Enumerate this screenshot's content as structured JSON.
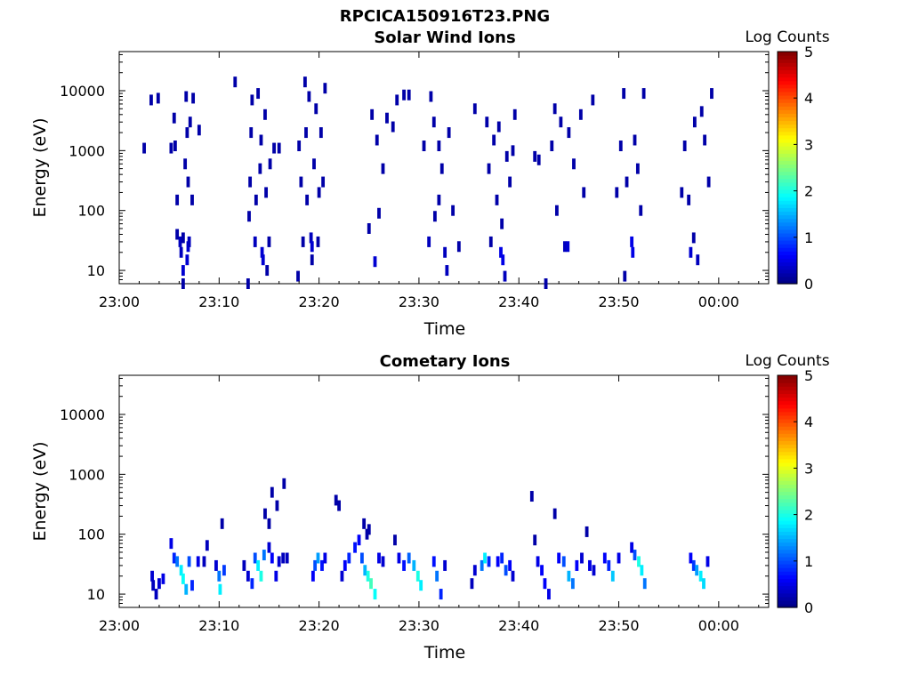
{
  "figure": {
    "title": "RPCICA150916T23.PNG"
  },
  "chart_data": [
    {
      "type": "heatmap",
      "title": "Solar Wind Ions",
      "xlabel": "Time",
      "ylabel": "Energy (eV)",
      "yscale": "log",
      "xlim": [
        "23:00",
        "00:05"
      ],
      "ylim": [
        6,
        45000
      ],
      "x_tick_labels": [
        "23:00",
        "23:10",
        "23:20",
        "23:30",
        "23:40",
        "23:50",
        "00:00"
      ],
      "y_tick_labels": [
        "10",
        "100",
        "1000",
        "10000"
      ],
      "colorbar": {
        "label": "Log Counts",
        "range": [
          0,
          5
        ],
        "tick_labels": [
          "0",
          "1",
          "2",
          "3",
          "4",
          "5"
        ],
        "colormap": "jet"
      },
      "cells": [
        [
          2.5,
          1100,
          0.2
        ],
        [
          3.2,
          7000,
          0.2
        ],
        [
          3.9,
          7500,
          0.2
        ],
        [
          5.2,
          1100,
          0.2
        ],
        [
          5.5,
          3500,
          0.2
        ],
        [
          5.6,
          1200,
          0.2
        ],
        [
          5.8,
          150,
          0.2
        ],
        [
          5.8,
          40,
          0.2
        ],
        [
          6.1,
          30,
          0.3
        ],
        [
          6.2,
          20,
          0.3
        ],
        [
          6.4,
          10,
          0.4
        ],
        [
          6.4,
          35,
          0.2
        ],
        [
          6.6,
          600,
          0.2
        ],
        [
          6.7,
          8000,
          0.2
        ],
        [
          6.8,
          2000,
          0.2
        ],
        [
          6.9,
          300,
          0.2
        ],
        [
          6.8,
          15,
          0.4
        ],
        [
          6.9,
          25,
          0.4
        ],
        [
          6.4,
          6,
          0.2
        ],
        [
          7.1,
          3000,
          0.2
        ],
        [
          7.3,
          150,
          0.2
        ],
        [
          7.4,
          7500,
          0.2
        ],
        [
          8.0,
          2200,
          0.2
        ],
        [
          7.0,
          30,
          0.3
        ],
        [
          11.6,
          14000,
          0.2
        ],
        [
          13.1,
          300,
          0.2
        ],
        [
          13.0,
          80,
          0.2
        ],
        [
          13.2,
          2000,
          0.2
        ],
        [
          13.3,
          7000,
          0.2
        ],
        [
          13.6,
          30,
          0.3
        ],
        [
          13.7,
          150,
          0.2
        ],
        [
          13.9,
          9000,
          0.2
        ],
        [
          14.1,
          500,
          0.2
        ],
        [
          14.2,
          1500,
          0.2
        ],
        [
          14.3,
          20,
          0.4
        ],
        [
          14.4,
          15,
          0.4
        ],
        [
          14.6,
          4000,
          0.2
        ],
        [
          14.7,
          200,
          0.2
        ],
        [
          14.8,
          10,
          0.2
        ],
        [
          12.9,
          6,
          0.2
        ],
        [
          15.0,
          30,
          0.2
        ],
        [
          15.1,
          600,
          0.2
        ],
        [
          15.5,
          1100,
          0.2
        ],
        [
          16.0,
          1100,
          0.2
        ],
        [
          18.0,
          1200,
          0.2
        ],
        [
          18.2,
          300,
          0.2
        ],
        [
          18.4,
          30,
          0.2
        ],
        [
          18.6,
          14000,
          0.2
        ],
        [
          18.7,
          2000,
          0.2
        ],
        [
          18.8,
          150,
          0.2
        ],
        [
          19.0,
          8000,
          0.2
        ],
        [
          19.2,
          35,
          0.3
        ],
        [
          19.3,
          25,
          0.4
        ],
        [
          19.5,
          600,
          0.2
        ],
        [
          19.7,
          5000,
          0.2
        ],
        [
          19.9,
          30,
          0.2
        ],
        [
          20.0,
          200,
          0.2
        ],
        [
          20.2,
          2000,
          0.2
        ],
        [
          20.4,
          300,
          0.2
        ],
        [
          20.6,
          11000,
          0.2
        ],
        [
          17.9,
          8,
          0.2
        ],
        [
          19.3,
          15,
          0.2
        ],
        [
          25.0,
          50,
          0.2
        ],
        [
          25.3,
          4000,
          0.2
        ],
        [
          25.6,
          14,
          0.4
        ],
        [
          25.8,
          1500,
          0.2
        ],
        [
          26.0,
          90,
          0.2
        ],
        [
          26.4,
          500,
          0.2
        ],
        [
          26.8,
          3500,
          0.2
        ],
        [
          27.4,
          2500,
          0.2
        ],
        [
          27.8,
          7000,
          0.2
        ],
        [
          28.5,
          8500,
          0.2
        ],
        [
          31.0,
          30,
          0.3
        ],
        [
          31.2,
          8000,
          0.2
        ],
        [
          31.5,
          3000,
          0.2
        ],
        [
          31.6,
          80,
          0.2
        ],
        [
          32.0,
          150,
          0.2
        ],
        [
          32.3,
          500,
          0.2
        ],
        [
          32.6,
          20,
          0.3
        ],
        [
          32.8,
          10,
          0.3
        ],
        [
          32.0,
          1200,
          0.2
        ],
        [
          33.0,
          2000,
          0.2
        ],
        [
          33.4,
          100,
          0.2
        ],
        [
          34.0,
          25,
          0.2
        ],
        [
          30.5,
          1200,
          0.2
        ],
        [
          29.0,
          8500,
          0.2
        ],
        [
          35.6,
          5000,
          0.2
        ],
        [
          36.8,
          3000,
          0.2
        ],
        [
          37.0,
          500,
          0.2
        ],
        [
          37.2,
          30,
          0.2
        ],
        [
          37.5,
          1500,
          0.2
        ],
        [
          37.8,
          150,
          0.2
        ],
        [
          38.2,
          20,
          0.5
        ],
        [
          38.4,
          15,
          0.5
        ],
        [
          38.6,
          8,
          0.3
        ],
        [
          38.0,
          2500,
          0.2
        ],
        [
          38.8,
          800,
          0.2
        ],
        [
          39.1,
          300,
          0.2
        ],
        [
          39.4,
          1000,
          0.2
        ],
        [
          39.6,
          4000,
          0.2
        ],
        [
          38.3,
          60,
          0.2
        ],
        [
          42.0,
          700,
          0.2
        ],
        [
          41.6,
          800,
          0.2
        ],
        [
          43.3,
          1200,
          0.2
        ],
        [
          43.6,
          5000,
          0.2
        ],
        [
          43.8,
          100,
          0.2
        ],
        [
          44.2,
          3000,
          0.2
        ],
        [
          44.6,
          25,
          0.3
        ],
        [
          44.9,
          25,
          0.4
        ],
        [
          45.0,
          2000,
          0.2
        ],
        [
          45.5,
          600,
          0.2
        ],
        [
          46.2,
          4000,
          0.2
        ],
        [
          46.5,
          200,
          0.2
        ],
        [
          47.4,
          7000,
          0.2
        ],
        [
          42.7,
          6,
          0.2
        ],
        [
          49.8,
          200,
          0.2
        ],
        [
          50.2,
          1200,
          0.2
        ],
        [
          50.5,
          9000,
          0.2
        ],
        [
          50.8,
          300,
          0.2
        ],
        [
          51.3,
          30,
          0.5
        ],
        [
          51.4,
          20,
          0.5
        ],
        [
          51.6,
          1500,
          0.2
        ],
        [
          51.9,
          500,
          0.2
        ],
        [
          52.2,
          100,
          0.2
        ],
        [
          52.5,
          9000,
          0.2
        ],
        [
          50.6,
          8,
          0.2
        ],
        [
          56.3,
          200,
          0.2
        ],
        [
          56.6,
          1200,
          0.2
        ],
        [
          57.0,
          150,
          0.2
        ],
        [
          57.2,
          20,
          0.4
        ],
        [
          57.6,
          3000,
          0.2
        ],
        [
          57.9,
          15,
          0.3
        ],
        [
          58.3,
          4500,
          0.2
        ],
        [
          58.6,
          1500,
          0.2
        ],
        [
          59.0,
          300,
          0.2
        ],
        [
          59.3,
          9000,
          0.2
        ],
        [
          57.5,
          35,
          0.2
        ]
      ]
    },
    {
      "type": "heatmap",
      "title": "Cometary Ions",
      "xlabel": "Time",
      "ylabel": "Energy (eV)",
      "yscale": "log",
      "xlim": [
        "23:00",
        "00:05"
      ],
      "ylim": [
        6,
        45000
      ],
      "x_tick_labels": [
        "23:00",
        "23:10",
        "23:20",
        "23:30",
        "23:40",
        "23:50",
        "00:00"
      ],
      "y_tick_labels": [
        "10",
        "100",
        "1000",
        "10000"
      ],
      "colorbar": {
        "label": "Log Counts",
        "range": [
          0,
          5
        ],
        "tick_labels": [
          "0",
          "1",
          "2",
          "3",
          "4",
          "5"
        ],
        "colormap": "jet"
      },
      "cells": [
        [
          3.3,
          20,
          0.4
        ],
        [
          3.4,
          14,
          0.3
        ],
        [
          3.7,
          10,
          0.3
        ],
        [
          4.0,
          15,
          0.4
        ],
        [
          4.4,
          18,
          0.5
        ],
        [
          5.2,
          70,
          0.5
        ],
        [
          5.5,
          40,
          0.8
        ],
        [
          5.8,
          35,
          1.2
        ],
        [
          6.2,
          25,
          1.8
        ],
        [
          6.4,
          18,
          1.9
        ],
        [
          6.7,
          12,
          1.5
        ],
        [
          7.0,
          35,
          1.0
        ],
        [
          7.3,
          14,
          0.8
        ],
        [
          7.9,
          35,
          0.5
        ],
        [
          8.5,
          35,
          0.3
        ],
        [
          8.8,
          65,
          0.3
        ],
        [
          9.7,
          30,
          0.4
        ],
        [
          10.0,
          20,
          1.2
        ],
        [
          10.1,
          12,
          1.8
        ],
        [
          10.5,
          25,
          0.9
        ],
        [
          10.3,
          150,
          0.2
        ],
        [
          12.5,
          30,
          0.3
        ],
        [
          12.9,
          20,
          0.4
        ],
        [
          13.3,
          15,
          0.8
        ],
        [
          13.6,
          40,
          1.0
        ],
        [
          13.9,
          30,
          1.8
        ],
        [
          14.2,
          20,
          2.0
        ],
        [
          14.5,
          45,
          1.2
        ],
        [
          15.0,
          60,
          0.4
        ],
        [
          15.3,
          40,
          0.6
        ],
        [
          15.7,
          20,
          0.5
        ],
        [
          16.0,
          35,
          0.4
        ],
        [
          16.4,
          40,
          0.3
        ],
        [
          16.8,
          40,
          0.3
        ],
        [
          14.6,
          220,
          0.2
        ],
        [
          15.0,
          150,
          0.2
        ],
        [
          15.3,
          500,
          0.2
        ],
        [
          15.8,
          300,
          0.2
        ],
        [
          16.5,
          700,
          0.2
        ],
        [
          19.4,
          20,
          0.6
        ],
        [
          19.6,
          30,
          1.0
        ],
        [
          19.9,
          40,
          1.4
        ],
        [
          20.3,
          30,
          0.7
        ],
        [
          20.6,
          40,
          0.5
        ],
        [
          21.7,
          370,
          0.2
        ],
        [
          22.0,
          300,
          0.2
        ],
        [
          22.3,
          20,
          0.4
        ],
        [
          22.6,
          30,
          0.6
        ],
        [
          23.0,
          40,
          0.8
        ],
        [
          23.6,
          60,
          0.7
        ],
        [
          24.0,
          80,
          0.6
        ],
        [
          24.3,
          40,
          1.0
        ],
        [
          24.6,
          25,
          1.5
        ],
        [
          24.9,
          20,
          2.0
        ],
        [
          25.2,
          15,
          2.2
        ],
        [
          25.6,
          10,
          1.9
        ],
        [
          26.0,
          40,
          0.5
        ],
        [
          26.4,
          35,
          0.4
        ],
        [
          24.5,
          150,
          0.2
        ],
        [
          24.8,
          100,
          0.2
        ],
        [
          25.0,
          120,
          0.2
        ],
        [
          27.6,
          80,
          0.2
        ],
        [
          28.0,
          40,
          0.5
        ],
        [
          28.5,
          30,
          0.7
        ],
        [
          29.0,
          40,
          1.1
        ],
        [
          29.5,
          30,
          1.5
        ],
        [
          29.9,
          20,
          2.0
        ],
        [
          30.2,
          14,
          1.8
        ],
        [
          31.5,
          35,
          0.7
        ],
        [
          31.8,
          20,
          1.2
        ],
        [
          32.2,
          10,
          0.8
        ],
        [
          32.6,
          30,
          0.4
        ],
        [
          35.3,
          15,
          0.3
        ],
        [
          35.6,
          25,
          0.4
        ],
        [
          36.3,
          30,
          1.2
        ],
        [
          36.6,
          40,
          1.8
        ],
        [
          37.0,
          35,
          0.8
        ],
        [
          37.9,
          35,
          0.6
        ],
        [
          38.3,
          40,
          0.8
        ],
        [
          38.7,
          25,
          1.0
        ],
        [
          39.1,
          30,
          0.6
        ],
        [
          39.4,
          20,
          0.4
        ],
        [
          41.3,
          430,
          0.2
        ],
        [
          41.6,
          80,
          0.2
        ],
        [
          41.9,
          35,
          0.5
        ],
        [
          42.3,
          25,
          0.6
        ],
        [
          42.6,
          15,
          0.6
        ],
        [
          43.0,
          10,
          0.5
        ],
        [
          43.6,
          220,
          0.2
        ],
        [
          44.0,
          40,
          0.6
        ],
        [
          44.5,
          35,
          1.0
        ],
        [
          45.0,
          20,
          1.5
        ],
        [
          45.4,
          15,
          1.2
        ],
        [
          45.8,
          30,
          0.6
        ],
        [
          46.3,
          40,
          0.4
        ],
        [
          46.8,
          110,
          0.2
        ],
        [
          47.1,
          30,
          0.5
        ],
        [
          47.5,
          25,
          0.4
        ],
        [
          48.6,
          40,
          0.6
        ],
        [
          49.0,
          30,
          0.8
        ],
        [
          49.4,
          20,
          1.6
        ],
        [
          50.0,
          40,
          0.5
        ],
        [
          51.3,
          60,
          0.5
        ],
        [
          51.6,
          45,
          1.0
        ],
        [
          52.0,
          35,
          2.0
        ],
        [
          52.3,
          25,
          1.8
        ],
        [
          52.6,
          15,
          1.2
        ],
        [
          57.2,
          40,
          0.6
        ],
        [
          57.5,
          30,
          0.9
        ],
        [
          57.8,
          25,
          1.4
        ],
        [
          58.2,
          20,
          1.8
        ],
        [
          58.5,
          15,
          1.7
        ],
        [
          58.9,
          35,
          0.5
        ]
      ]
    }
  ]
}
